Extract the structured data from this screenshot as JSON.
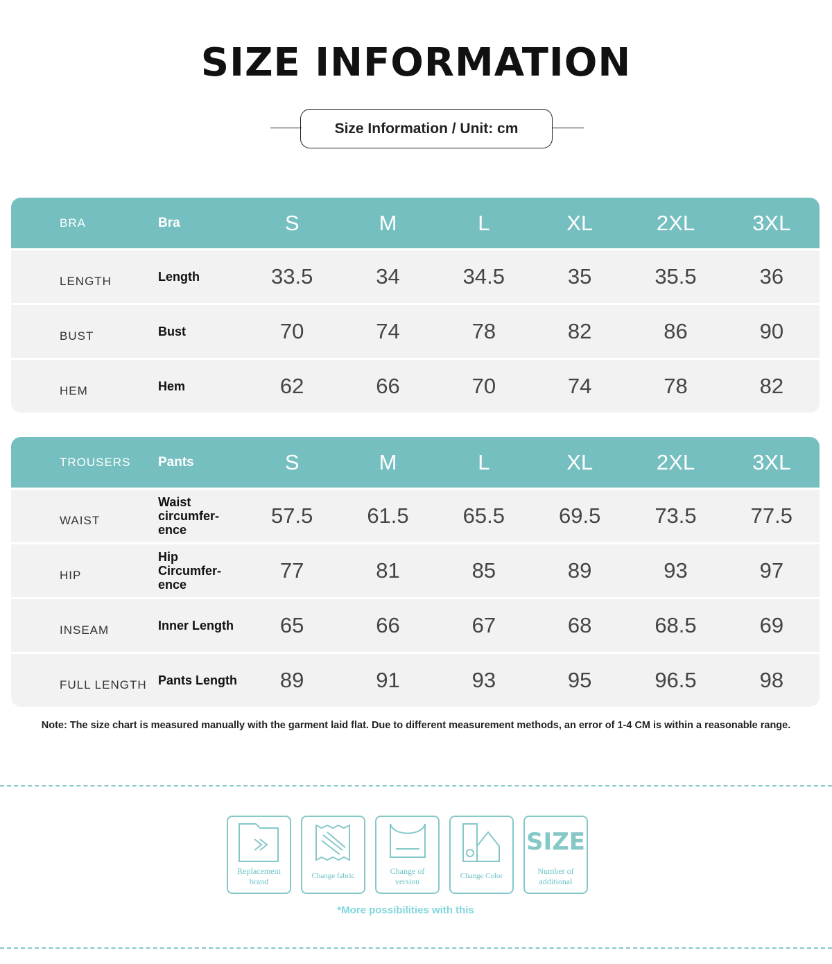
{
  "header": {
    "title": "SIZE INFORMATION",
    "subtitle": "Size Information / Unit: cm"
  },
  "tables": [
    {
      "header": [
        "BRA",
        "Bra",
        "S",
        "M",
        "L",
        "XL",
        "2XL",
        "3XL"
      ],
      "rows": [
        [
          "LENGTH",
          "Length",
          33.5,
          34,
          34.5,
          35,
          35.5,
          36
        ],
        [
          "BUST",
          "Bust",
          70,
          74,
          78,
          82,
          86,
          90
        ],
        [
          "HEM",
          "Hem",
          62,
          66,
          70,
          74,
          78,
          82
        ]
      ]
    },
    {
      "header": [
        "TROUSERS",
        "Pants",
        "S",
        "M",
        "L",
        "XL",
        "2XL",
        "3XL"
      ],
      "rows": [
        [
          "WAIST",
          "Waist circumfer-ence",
          57.5,
          61.5,
          65.5,
          69.5,
          73.5,
          77.5
        ],
        [
          "HIP",
          "Hip Circumfer-ence",
          77,
          81,
          85,
          89,
          93,
          97
        ],
        [
          "INSEAM",
          "Inner Length",
          65,
          66,
          67,
          68,
          68.5,
          69
        ],
        [
          "FULL LENGTH",
          "Pants Length",
          89,
          91,
          93,
          95,
          96.5,
          98
        ]
      ]
    }
  ],
  "note": "Note: The size chart is measured manually with the garment laid flat. Due to different measurement methods, an error of 1-4 CM is within a reasonable range.",
  "features": [
    {
      "label": "Replacement brand"
    },
    {
      "label": "Change fabric"
    },
    {
      "label": "Change of version"
    },
    {
      "label": "Change Color"
    },
    {
      "label": "Number of additional",
      "icon_text": "SIZE"
    }
  ],
  "features_note": "*More possibilities with this"
}
